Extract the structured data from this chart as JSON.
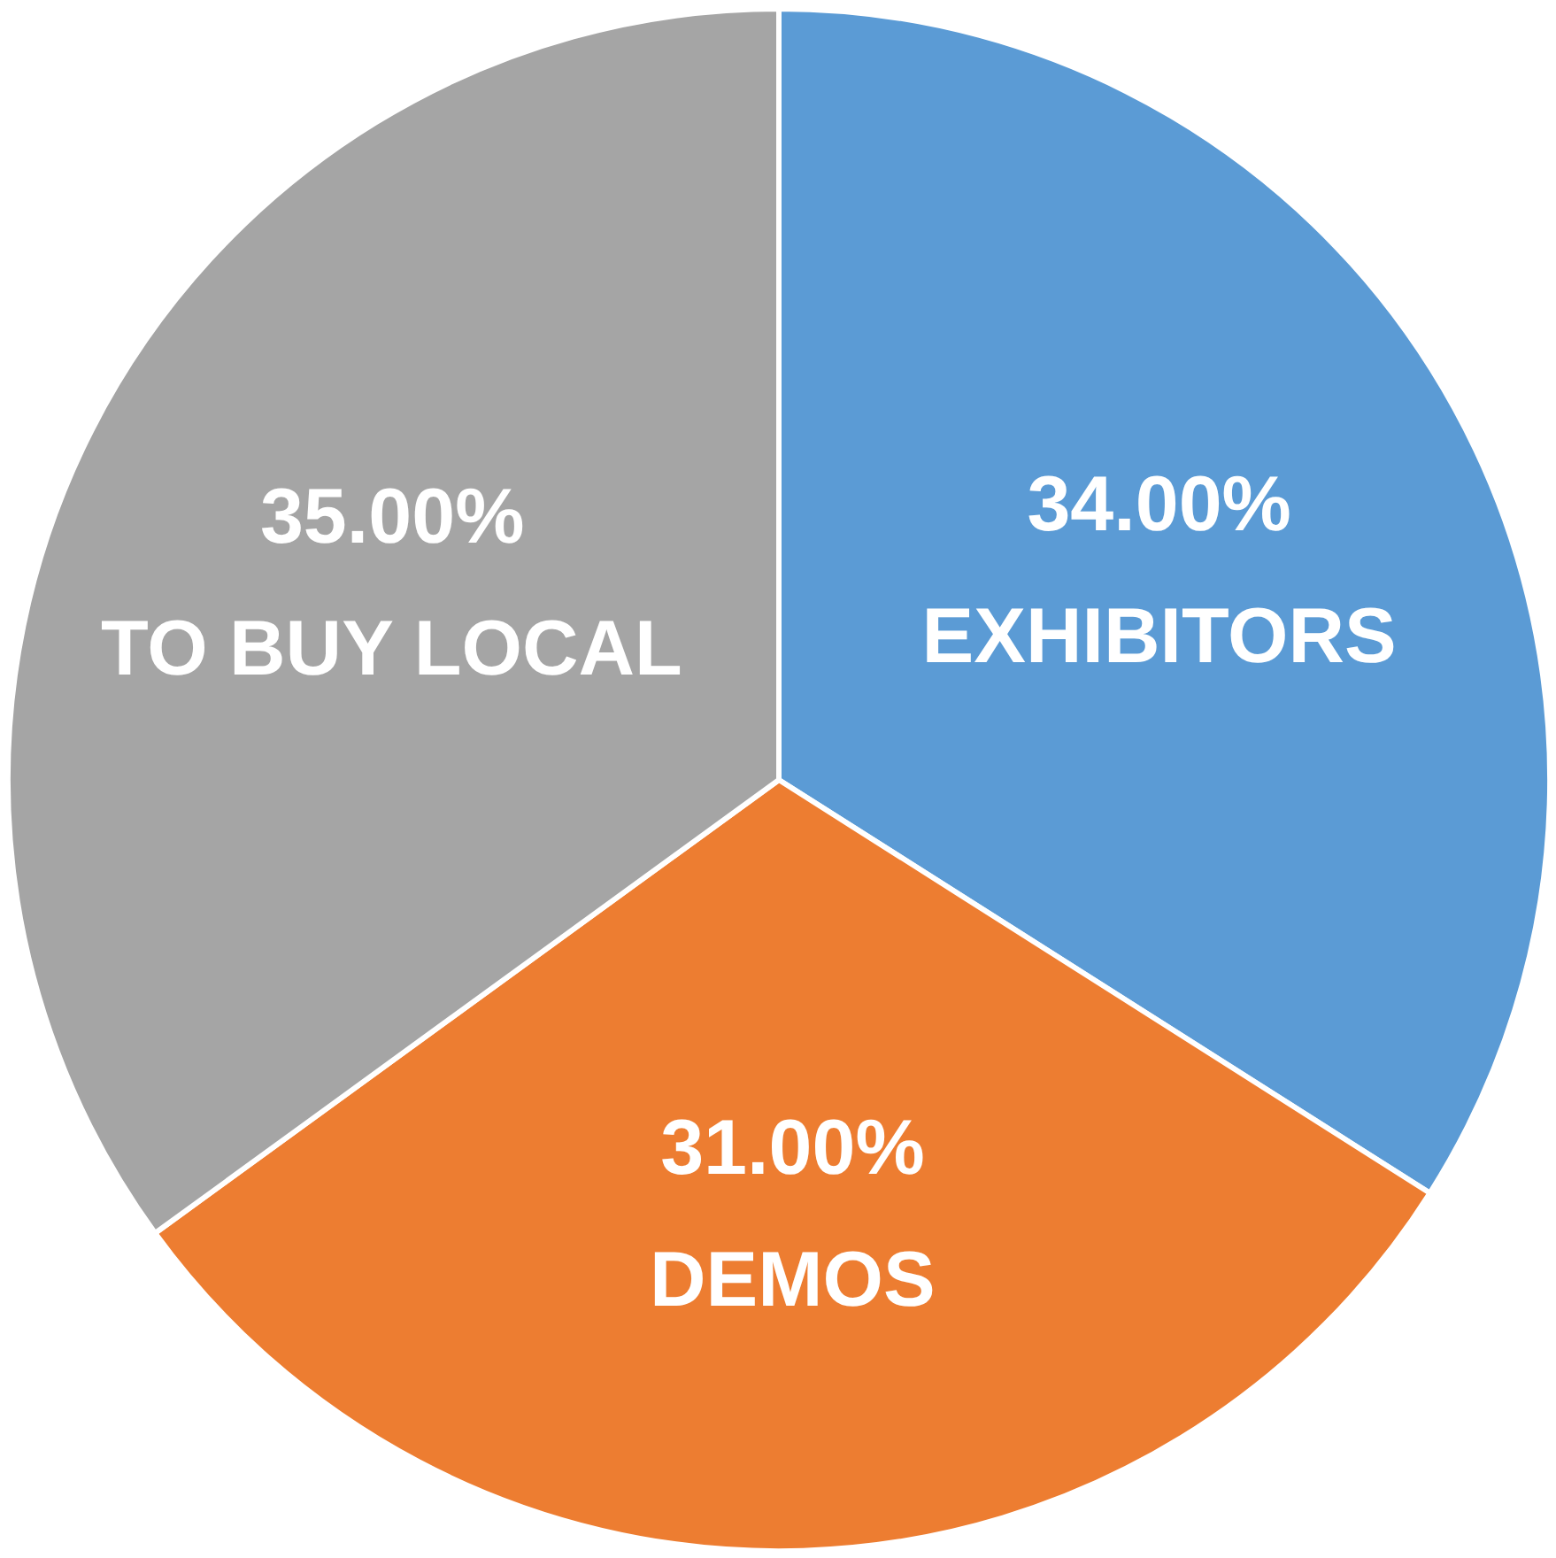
{
  "chart_data": {
    "type": "pie",
    "categories": [
      "EXHIBITORS",
      "DEMOS",
      "TO BUY LOCAL"
    ],
    "values": [
      34,
      31,
      35
    ],
    "colors": [
      "#5b9bd5",
      "#ed7d31",
      "#a5a5a5"
    ],
    "value_labels": [
      "34.00%",
      "31.00%",
      "35.00%"
    ]
  }
}
